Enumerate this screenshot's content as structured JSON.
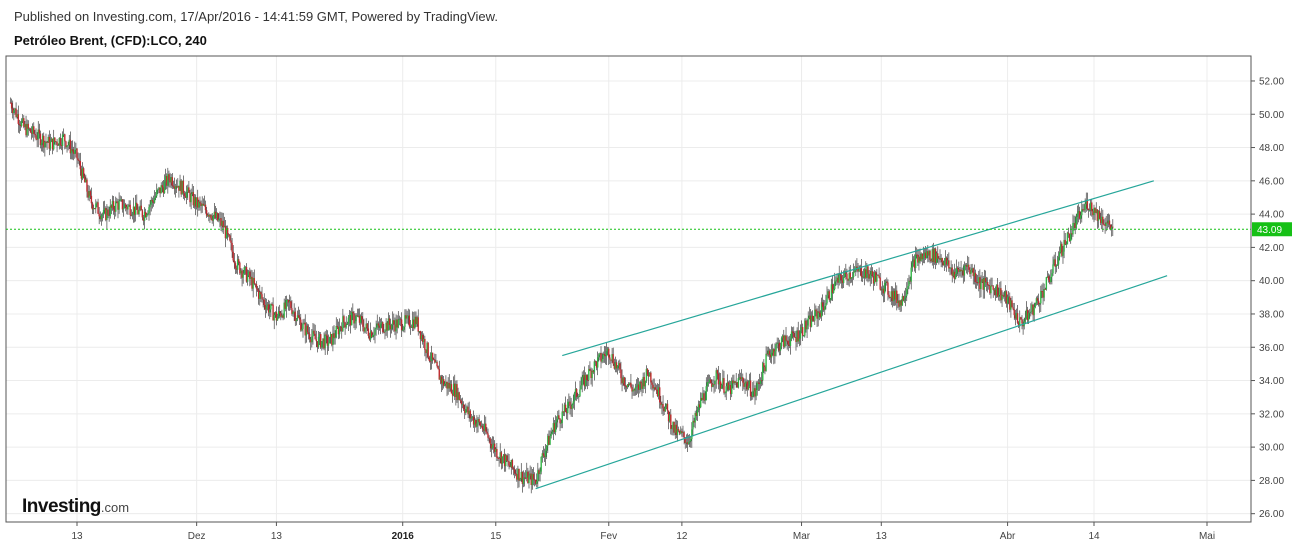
{
  "header": {
    "published": "Published on Investing.com, 17/Apr/2016 - 14:41:59 GMT, Powered by TradingView.",
    "symbol": "Petróleo Brent, (CFD):LCO, 240"
  },
  "logo": {
    "main": "Investing",
    "suffix": ".com"
  },
  "colors": {
    "up": "#2fb344",
    "down": "#c0282d",
    "channel": "#26a69a",
    "last_price": "#16c016"
  },
  "chart_data": {
    "type": "candlestick",
    "title": "Petróleo Brent, (CFD):LCO, 240",
    "ylim": [
      25.5,
      53.5
    ],
    "y_ticks": [
      "52.00",
      "50.00",
      "48.00",
      "46.00",
      "44.00",
      "42.00",
      "40.00",
      "38.00",
      "36.00",
      "34.00",
      "32.00",
      "30.00",
      "28.00",
      "26.00"
    ],
    "x_ticks": [
      {
        "label": "13",
        "date": "2015-11-13"
      },
      {
        "label": "Dez",
        "date": "2015-12-01"
      },
      {
        "label": "13",
        "date": "2015-12-13"
      },
      {
        "label": "2016",
        "date": "2016-01-01",
        "bold": true
      },
      {
        "label": "15",
        "date": "2016-01-15"
      },
      {
        "label": "Fev",
        "date": "2016-02-01"
      },
      {
        "label": "12",
        "date": "2016-02-12"
      },
      {
        "label": "Mar",
        "date": "2016-03-01"
      },
      {
        "label": "13",
        "date": "2016-03-13"
      },
      {
        "label": "Abr",
        "date": "2016-04-01"
      },
      {
        "label": "14",
        "date": "2016-04-14"
      },
      {
        "label": "Mai",
        "date": "2016-05-01"
      }
    ],
    "last_price": "43.09",
    "price_path": [
      [
        "2015-11-03",
        50.7
      ],
      [
        "2015-11-05",
        49.2
      ],
      [
        "2015-11-09",
        48.2
      ],
      [
        "2015-11-11",
        48.6
      ],
      [
        "2015-11-13",
        47.4
      ],
      [
        "2015-11-15",
        44.8
      ],
      [
        "2015-11-17",
        43.9
      ],
      [
        "2015-11-19",
        44.6
      ],
      [
        "2015-11-21",
        44.4
      ],
      [
        "2015-11-23",
        44.0
      ],
      [
        "2015-11-25",
        45.2
      ],
      [
        "2015-11-27",
        46.2
      ],
      [
        "2015-11-29",
        45.5
      ],
      [
        "2015-12-01",
        44.6
      ],
      [
        "2015-12-03",
        44.1
      ],
      [
        "2015-12-05",
        43.3
      ],
      [
        "2015-12-07",
        41.0
      ],
      [
        "2015-12-09",
        40.1
      ],
      [
        "2015-12-11",
        38.8
      ],
      [
        "2015-12-13",
        37.8
      ],
      [
        "2015-12-15",
        38.6
      ],
      [
        "2015-12-17",
        37.2
      ],
      [
        "2015-12-19",
        36.4
      ],
      [
        "2015-12-21",
        36.3
      ],
      [
        "2015-12-23",
        37.5
      ],
      [
        "2015-12-25",
        37.8
      ],
      [
        "2015-12-27",
        36.9
      ],
      [
        "2015-12-29",
        37.3
      ],
      [
        "2015-12-31",
        37.4
      ],
      [
        "2016-01-03",
        37.6
      ],
      [
        "2016-01-05",
        35.5
      ],
      [
        "2016-01-07",
        33.9
      ],
      [
        "2016-01-09",
        33.4
      ],
      [
        "2016-01-11",
        31.9
      ],
      [
        "2016-01-13",
        31.2
      ],
      [
        "2016-01-15",
        29.8
      ],
      [
        "2016-01-17",
        28.9
      ],
      [
        "2016-01-19",
        28.2
      ],
      [
        "2016-01-21",
        28.0
      ],
      [
        "2016-01-22",
        29.4
      ],
      [
        "2016-01-24",
        31.5
      ],
      [
        "2016-01-26",
        32.4
      ],
      [
        "2016-01-28",
        33.8
      ],
      [
        "2016-01-30",
        35.0
      ],
      [
        "2016-02-01",
        35.8
      ],
      [
        "2016-02-03",
        34.2
      ],
      [
        "2016-02-05",
        33.3
      ],
      [
        "2016-02-07",
        34.5
      ],
      [
        "2016-02-09",
        32.8
      ],
      [
        "2016-02-11",
        30.9
      ],
      [
        "2016-02-13",
        30.4
      ],
      [
        "2016-02-15",
        32.9
      ],
      [
        "2016-02-17",
        34.3
      ],
      [
        "2016-02-19",
        33.4
      ],
      [
        "2016-02-21",
        34.1
      ],
      [
        "2016-02-23",
        33.2
      ],
      [
        "2016-02-25",
        35.6
      ],
      [
        "2016-02-27",
        36.3
      ],
      [
        "2016-02-29",
        36.6
      ],
      [
        "2016-03-02",
        37.4
      ],
      [
        "2016-03-04",
        38.3
      ],
      [
        "2016-03-06",
        39.8
      ],
      [
        "2016-03-08",
        40.4
      ],
      [
        "2016-03-10",
        40.6
      ],
      [
        "2016-03-12",
        40.2
      ],
      [
        "2016-03-14",
        39.4
      ],
      [
        "2016-03-16",
        38.7
      ],
      [
        "2016-03-18",
        41.2
      ],
      [
        "2016-03-20",
        41.6
      ],
      [
        "2016-03-22",
        41.4
      ],
      [
        "2016-03-24",
        40.4
      ],
      [
        "2016-03-26",
        40.9
      ],
      [
        "2016-03-28",
        39.8
      ],
      [
        "2016-03-30",
        39.6
      ],
      [
        "2016-04-01",
        38.8
      ],
      [
        "2016-04-03",
        37.4
      ],
      [
        "2016-04-05",
        38.4
      ],
      [
        "2016-04-07",
        39.9
      ],
      [
        "2016-04-09",
        41.8
      ],
      [
        "2016-04-11",
        43.3
      ],
      [
        "2016-04-13",
        44.7
      ],
      [
        "2016-04-15",
        43.8
      ],
      [
        "2016-04-17",
        43.09
      ]
    ],
    "channel_lines": [
      {
        "from": [
          "2016-01-25",
          35.5
        ],
        "to": [
          "2016-04-23",
          46.0
        ]
      },
      {
        "from": [
          "2016-01-21",
          27.5
        ],
        "to": [
          "2016-04-25",
          40.3
        ]
      }
    ]
  }
}
